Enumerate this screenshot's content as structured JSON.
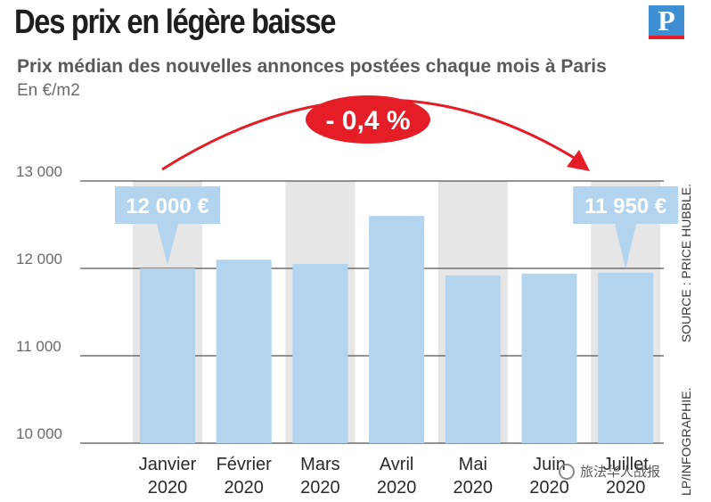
{
  "header": {
    "title": "Des prix en légère baisse",
    "logo_letter": "P",
    "subtitle": "Prix médian des nouvelles annonces postées chaque mois à Paris",
    "unit": "En €/m2"
  },
  "side_notes": {
    "credit": "LP/INFOGRAPHIE.",
    "source": "SOURCE : PRICE HUBBLE."
  },
  "watermark": "旅法华人战报",
  "colors": {
    "bar": "#b2d4ee",
    "band": "#e6e6e6",
    "accent_red": "#e41d26",
    "callout_bg": "#b2d4ee",
    "callout_text": "#ffffff",
    "grid": "#555555"
  },
  "chart_data": {
    "type": "bar",
    "categories": [
      [
        "Janvier",
        "2020"
      ],
      [
        "Février",
        "2020"
      ],
      [
        "Mars",
        "2020"
      ],
      [
        "Avril",
        "2020"
      ],
      [
        "Mai",
        "2020"
      ],
      [
        "Juin",
        "2020"
      ],
      [
        "Juillet",
        "2020"
      ]
    ],
    "values": [
      12000,
      12100,
      12050,
      12600,
      11920,
      11940,
      11950
    ],
    "ylim": [
      10000,
      13000
    ],
    "yticks": [
      {
        "value": 10000,
        "label": "10 000"
      },
      {
        "value": 11000,
        "label": "11 000"
      },
      {
        "value": 12000,
        "label": "12 000"
      },
      {
        "value": 13000,
        "label": "13 000"
      }
    ],
    "grid": true,
    "shaded_bands": [
      0,
      2,
      4,
      6
    ],
    "callouts": [
      {
        "index": 0,
        "label": "12 000 €"
      },
      {
        "index": 6,
        "label": "11 950 €"
      }
    ],
    "change_badge": "- 0,4 %"
  }
}
